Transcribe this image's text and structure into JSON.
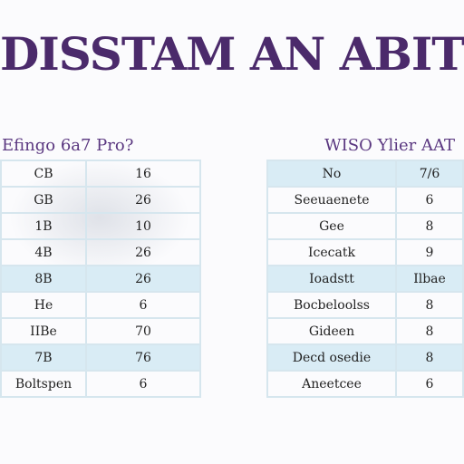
{
  "colors": {
    "title": "#4b2a6b",
    "heading": "#5a3780",
    "table_border": "#d6e6ee",
    "row_shade": "#d9ecf5"
  },
  "title": "DISSTAM AN ABITER C",
  "left_table": {
    "heading": "Efingo 6a7 Pro?",
    "rows": [
      {
        "label": "CB",
        "value": "16",
        "shade": false
      },
      {
        "label": "GB",
        "value": "26",
        "shade": false
      },
      {
        "label": "1B",
        "value": "10",
        "shade": false
      },
      {
        "label": "4B",
        "value": "26",
        "shade": false
      },
      {
        "label": "8B",
        "value": "26",
        "shade": true
      },
      {
        "label": "He",
        "value": "6",
        "shade": false
      },
      {
        "label": "IIBe",
        "value": "70",
        "shade": false
      },
      {
        "label": "7B",
        "value": "76",
        "shade": true
      },
      {
        "label": "Boltspen",
        "value": "6",
        "shade": false
      }
    ]
  },
  "right_table": {
    "heading": "WISO Ylier AAT",
    "rows": [
      {
        "label": "No",
        "value": "7/6",
        "shade": true
      },
      {
        "label": "Seeuaenete",
        "value": "6",
        "shade": false
      },
      {
        "label": "Gee",
        "value": "8",
        "shade": false
      },
      {
        "label": "Icecatk",
        "value": "9",
        "shade": false
      },
      {
        "label": "Ioadstt",
        "value": "Ilbae",
        "shade": true
      },
      {
        "label": "Bocbeloolss",
        "value": "8",
        "shade": false
      },
      {
        "label": "Gideen",
        "value": "8",
        "shade": false
      },
      {
        "label": "Decd osedie",
        "value": "8",
        "shade": true
      },
      {
        "label": "Aneetcee",
        "value": "6",
        "shade": false
      }
    ]
  }
}
